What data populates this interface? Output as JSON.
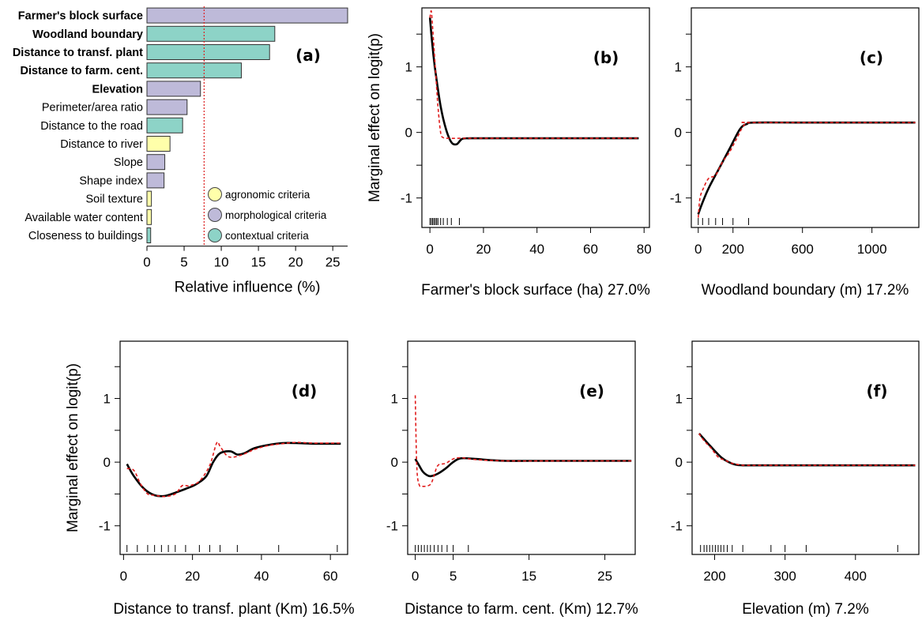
{
  "chart_data": [
    {
      "type": "bar",
      "panel_label": "(a)",
      "xlabel": "Relative influence (%)",
      "xlim": [
        0,
        27
      ],
      "xticks": [
        0,
        5,
        10,
        15,
        20,
        25
      ],
      "reference_line": 7.69,
      "categories": [
        "Farmer's block surface",
        "Woodland boundary",
        "Distance to transf. plant",
        "Distance to farm. cent.",
        "Elevation",
        "Perimeter/area ratio",
        "Distance to the road",
        "Distance to river",
        "Slope",
        "Shape index",
        "Soil texture",
        "Available water content",
        "Closeness to buildings"
      ],
      "values": [
        27.0,
        17.2,
        16.5,
        12.7,
        7.2,
        5.4,
        4.8,
        3.1,
        2.4,
        2.3,
        0.6,
        0.6,
        0.5
      ],
      "criteria": [
        "morphological",
        "contextual",
        "contextual",
        "contextual",
        "morphological",
        "morphological",
        "contextual",
        "agronomic",
        "morphological",
        "morphological",
        "agronomic",
        "agronomic",
        "contextual"
      ],
      "bold": [
        true,
        true,
        true,
        true,
        true,
        false,
        false,
        false,
        false,
        false,
        false,
        false,
        false
      ],
      "legend": {
        "placement": "bottom-right",
        "entries": [
          {
            "key": "agronomic",
            "label": "agronomic criteria",
            "color": "#FFFFAA"
          },
          {
            "key": "morphological",
            "label": "morphological criteria",
            "color": "#BEBAD9"
          },
          {
            "key": "contextual",
            "label": "contextual criteria",
            "color": "#8DD3C7"
          }
        ]
      }
    },
    {
      "type": "line",
      "panel_label": "(b)",
      "xlabel": "Farmer's block surface (ha) 27.0%",
      "ylabel": "Marginal effect on logit(p)",
      "xlim": [
        -3,
        82
      ],
      "ylim": [
        -1.45,
        1.9
      ],
      "xticks": [
        0,
        20,
        40,
        60,
        80
      ],
      "yticks": [
        -1,
        0,
        1
      ],
      "series": [
        {
          "style": "smooth",
          "x": [
            0,
            1,
            2,
            4,
            6,
            8,
            10,
            12,
            15,
            20,
            40,
            60,
            78
          ],
          "y": [
            1.75,
            1.3,
            0.95,
            0.4,
            0.05,
            -0.15,
            -0.18,
            -0.1,
            -0.09,
            -0.09,
            -0.09,
            -0.09,
            -0.09
          ]
        },
        {
          "style": "step",
          "x": [
            0,
            0.5,
            1,
            2,
            3,
            4,
            5,
            7,
            12,
            20,
            78
          ],
          "y": [
            1.75,
            1.85,
            1.6,
            1.0,
            0.4,
            0.0,
            -0.08,
            -0.09,
            -0.09,
            -0.09,
            -0.09
          ]
        }
      ],
      "rug": [
        0,
        0.5,
        1,
        1.5,
        2,
        2.5,
        3,
        4,
        5,
        6.5,
        8,
        11
      ]
    },
    {
      "type": "line",
      "panel_label": "(c)",
      "xlabel": "Woodland boundary (m) 17.2%",
      "xlim": [
        -40,
        1270
      ],
      "ylim": [
        -1.45,
        1.9
      ],
      "xticks": [
        0,
        200,
        600,
        1000
      ],
      "yticks": [
        -1,
        0,
        1
      ],
      "series": [
        {
          "style": "smooth",
          "x": [
            0,
            20,
            60,
            120,
            180,
            240,
            280,
            320,
            600,
            1000,
            1250
          ],
          "y": [
            -1.25,
            -1.1,
            -0.85,
            -0.55,
            -0.25,
            0.05,
            0.13,
            0.15,
            0.15,
            0.15,
            0.15
          ]
        },
        {
          "style": "step",
          "x": [
            0,
            10,
            30,
            60,
            100,
            140,
            180,
            220,
            260,
            290,
            320,
            1250
          ],
          "y": [
            -1.3,
            -1.0,
            -0.85,
            -0.7,
            -0.65,
            -0.45,
            -0.3,
            -0.1,
            0.1,
            0.15,
            0.15,
            0.15
          ]
        }
      ],
      "rug": [
        0,
        25,
        60,
        100,
        140,
        200,
        290
      ]
    },
    {
      "type": "line",
      "panel_label": "(d)",
      "xlabel": "Distance to transf. plant (Km) 16.5%",
      "ylabel": "Marginal effect on logit(p)",
      "xlim": [
        -1,
        65
      ],
      "ylim": [
        -1.45,
        1.9
      ],
      "xticks": [
        0,
        20,
        40,
        60
      ],
      "yticks": [
        -1,
        0,
        1
      ],
      "series": [
        {
          "style": "smooth",
          "x": [
            1,
            3,
            6,
            9,
            12,
            15,
            18,
            21,
            24,
            26,
            28,
            31,
            33,
            35,
            38,
            42,
            46,
            50,
            55,
            63
          ],
          "y": [
            -0.03,
            -0.22,
            -0.42,
            -0.52,
            -0.53,
            -0.48,
            -0.42,
            -0.35,
            -0.22,
            0.0,
            0.14,
            0.17,
            0.12,
            0.14,
            0.22,
            0.27,
            0.3,
            0.3,
            0.29,
            0.29
          ]
        },
        {
          "style": "step",
          "x": [
            1,
            3,
            5,
            7,
            9,
            12,
            15,
            17,
            19,
            22,
            25,
            27,
            28,
            30,
            32,
            35,
            38,
            42,
            46,
            50,
            55,
            63
          ],
          "y": [
            -0.1,
            -0.13,
            -0.35,
            -0.5,
            -0.52,
            -0.54,
            -0.5,
            -0.37,
            -0.37,
            -0.3,
            -0.05,
            0.3,
            0.25,
            0.1,
            0.08,
            0.13,
            0.2,
            0.26,
            0.29,
            0.31,
            0.3,
            0.3
          ]
        }
      ],
      "rug": [
        1,
        4,
        7,
        9,
        11,
        13,
        15,
        18,
        22,
        25,
        28,
        33,
        45,
        62
      ]
    },
    {
      "type": "line",
      "panel_label": "(e)",
      "xlabel": "Distance to farm. cent. (Km) 12.7%",
      "xlim": [
        -1,
        29
      ],
      "ylim": [
        -1.45,
        1.9
      ],
      "xticks": [
        0,
        5,
        15,
        25
      ],
      "yticks": [
        -1,
        0,
        1
      ],
      "series": [
        {
          "style": "smooth",
          "x": [
            0,
            0.5,
            1,
            1.5,
            2,
            3,
            4,
            5,
            6,
            8,
            10,
            12,
            15,
            20,
            25,
            28.5
          ],
          "y": [
            0.05,
            -0.05,
            -0.15,
            -0.2,
            -0.22,
            -0.18,
            -0.1,
            0.0,
            0.06,
            0.05,
            0.03,
            0.02,
            0.02,
            0.02,
            0.02,
            0.02
          ]
        },
        {
          "style": "step",
          "x": [
            0,
            0.2,
            0.5,
            1,
            2,
            2.5,
            3,
            4,
            5,
            6,
            8,
            12,
            20,
            28.5
          ],
          "y": [
            1.05,
            -0.05,
            -0.35,
            -0.38,
            -0.35,
            -0.2,
            -0.05,
            -0.02,
            0.05,
            0.07,
            0.04,
            0.02,
            0.02,
            0.02
          ]
        }
      ],
      "rug": [
        0,
        0.4,
        0.8,
        1.2,
        1.6,
        2.0,
        2.5,
        3,
        3.5,
        4.2,
        5,
        7
      ]
    },
    {
      "type": "line",
      "panel_label": "(f)",
      "xlabel": "Elevation (m) 7.2%",
      "xlim": [
        168,
        490
      ],
      "ylim": [
        -1.45,
        1.9
      ],
      "xticks": [
        200,
        300,
        400
      ],
      "yticks": [
        -1,
        0,
        1
      ],
      "series": [
        {
          "style": "smooth",
          "x": [
            178,
            190,
            200,
            210,
            220,
            230,
            240,
            260,
            300,
            400,
            485
          ],
          "y": [
            0.45,
            0.3,
            0.18,
            0.07,
            0.0,
            -0.04,
            -0.05,
            -0.05,
            -0.05,
            -0.05,
            -0.05
          ]
        },
        {
          "style": "step",
          "x": [
            178,
            182,
            188,
            195,
            205,
            215,
            225,
            235,
            245,
            300,
            485
          ],
          "y": [
            0.45,
            0.38,
            0.3,
            0.22,
            0.08,
            0.03,
            -0.02,
            -0.04,
            -0.05,
            -0.05,
            -0.05
          ]
        }
      ],
      "rug": [
        180,
        185,
        189,
        193,
        197,
        201,
        205,
        209,
        213,
        218,
        225,
        240,
        280,
        300,
        330,
        460
      ]
    }
  ]
}
